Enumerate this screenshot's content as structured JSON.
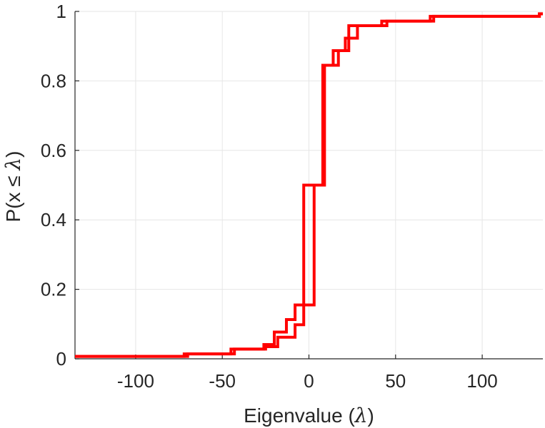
{
  "chart_data": {
    "type": "line",
    "xlabel_parts": [
      "Eigenvalue (",
      "λ",
      ")"
    ],
    "ylabel_parts": [
      "P(x ",
      "≤",
      " ",
      "λ",
      ")"
    ],
    "xlim": [
      -135,
      135
    ],
    "ylim": [
      0,
      1
    ],
    "xticks": [
      -100,
      -50,
      0,
      50,
      100
    ],
    "xtick_labels": [
      "-100",
      "-50",
      "0",
      "50",
      "100"
    ],
    "yticks": [
      0,
      0.2,
      0.4,
      0.6,
      0.8,
      1
    ],
    "ytick_labels": [
      "0",
      "0.2",
      "0.4",
      "0.6",
      "0.8",
      "1"
    ],
    "grid": true,
    "line_color": "#ff0000",
    "series": [
      {
        "step": "post",
        "x": [
          -135,
          -72,
          -45,
          -26,
          -20,
          -13,
          -8,
          -3,
          8,
          14,
          21,
          28,
          45,
          70,
          133
        ],
        "y": [
          0.007,
          0.014,
          0.028,
          0.041,
          0.077,
          0.113,
          0.155,
          0.5,
          0.845,
          0.887,
          0.923,
          0.959,
          0.972,
          0.986,
          0.993
        ]
      },
      {
        "step": "post",
        "x": [
          -135,
          -70,
          -43,
          -25,
          -18,
          -8,
          -3,
          3,
          9,
          17,
          23,
          42,
          72,
          133
        ],
        "y": [
          0.007,
          0.014,
          0.028,
          0.035,
          0.062,
          0.098,
          0.155,
          0.5,
          0.845,
          0.887,
          0.959,
          0.972,
          0.986,
          0.993
        ]
      }
    ]
  }
}
